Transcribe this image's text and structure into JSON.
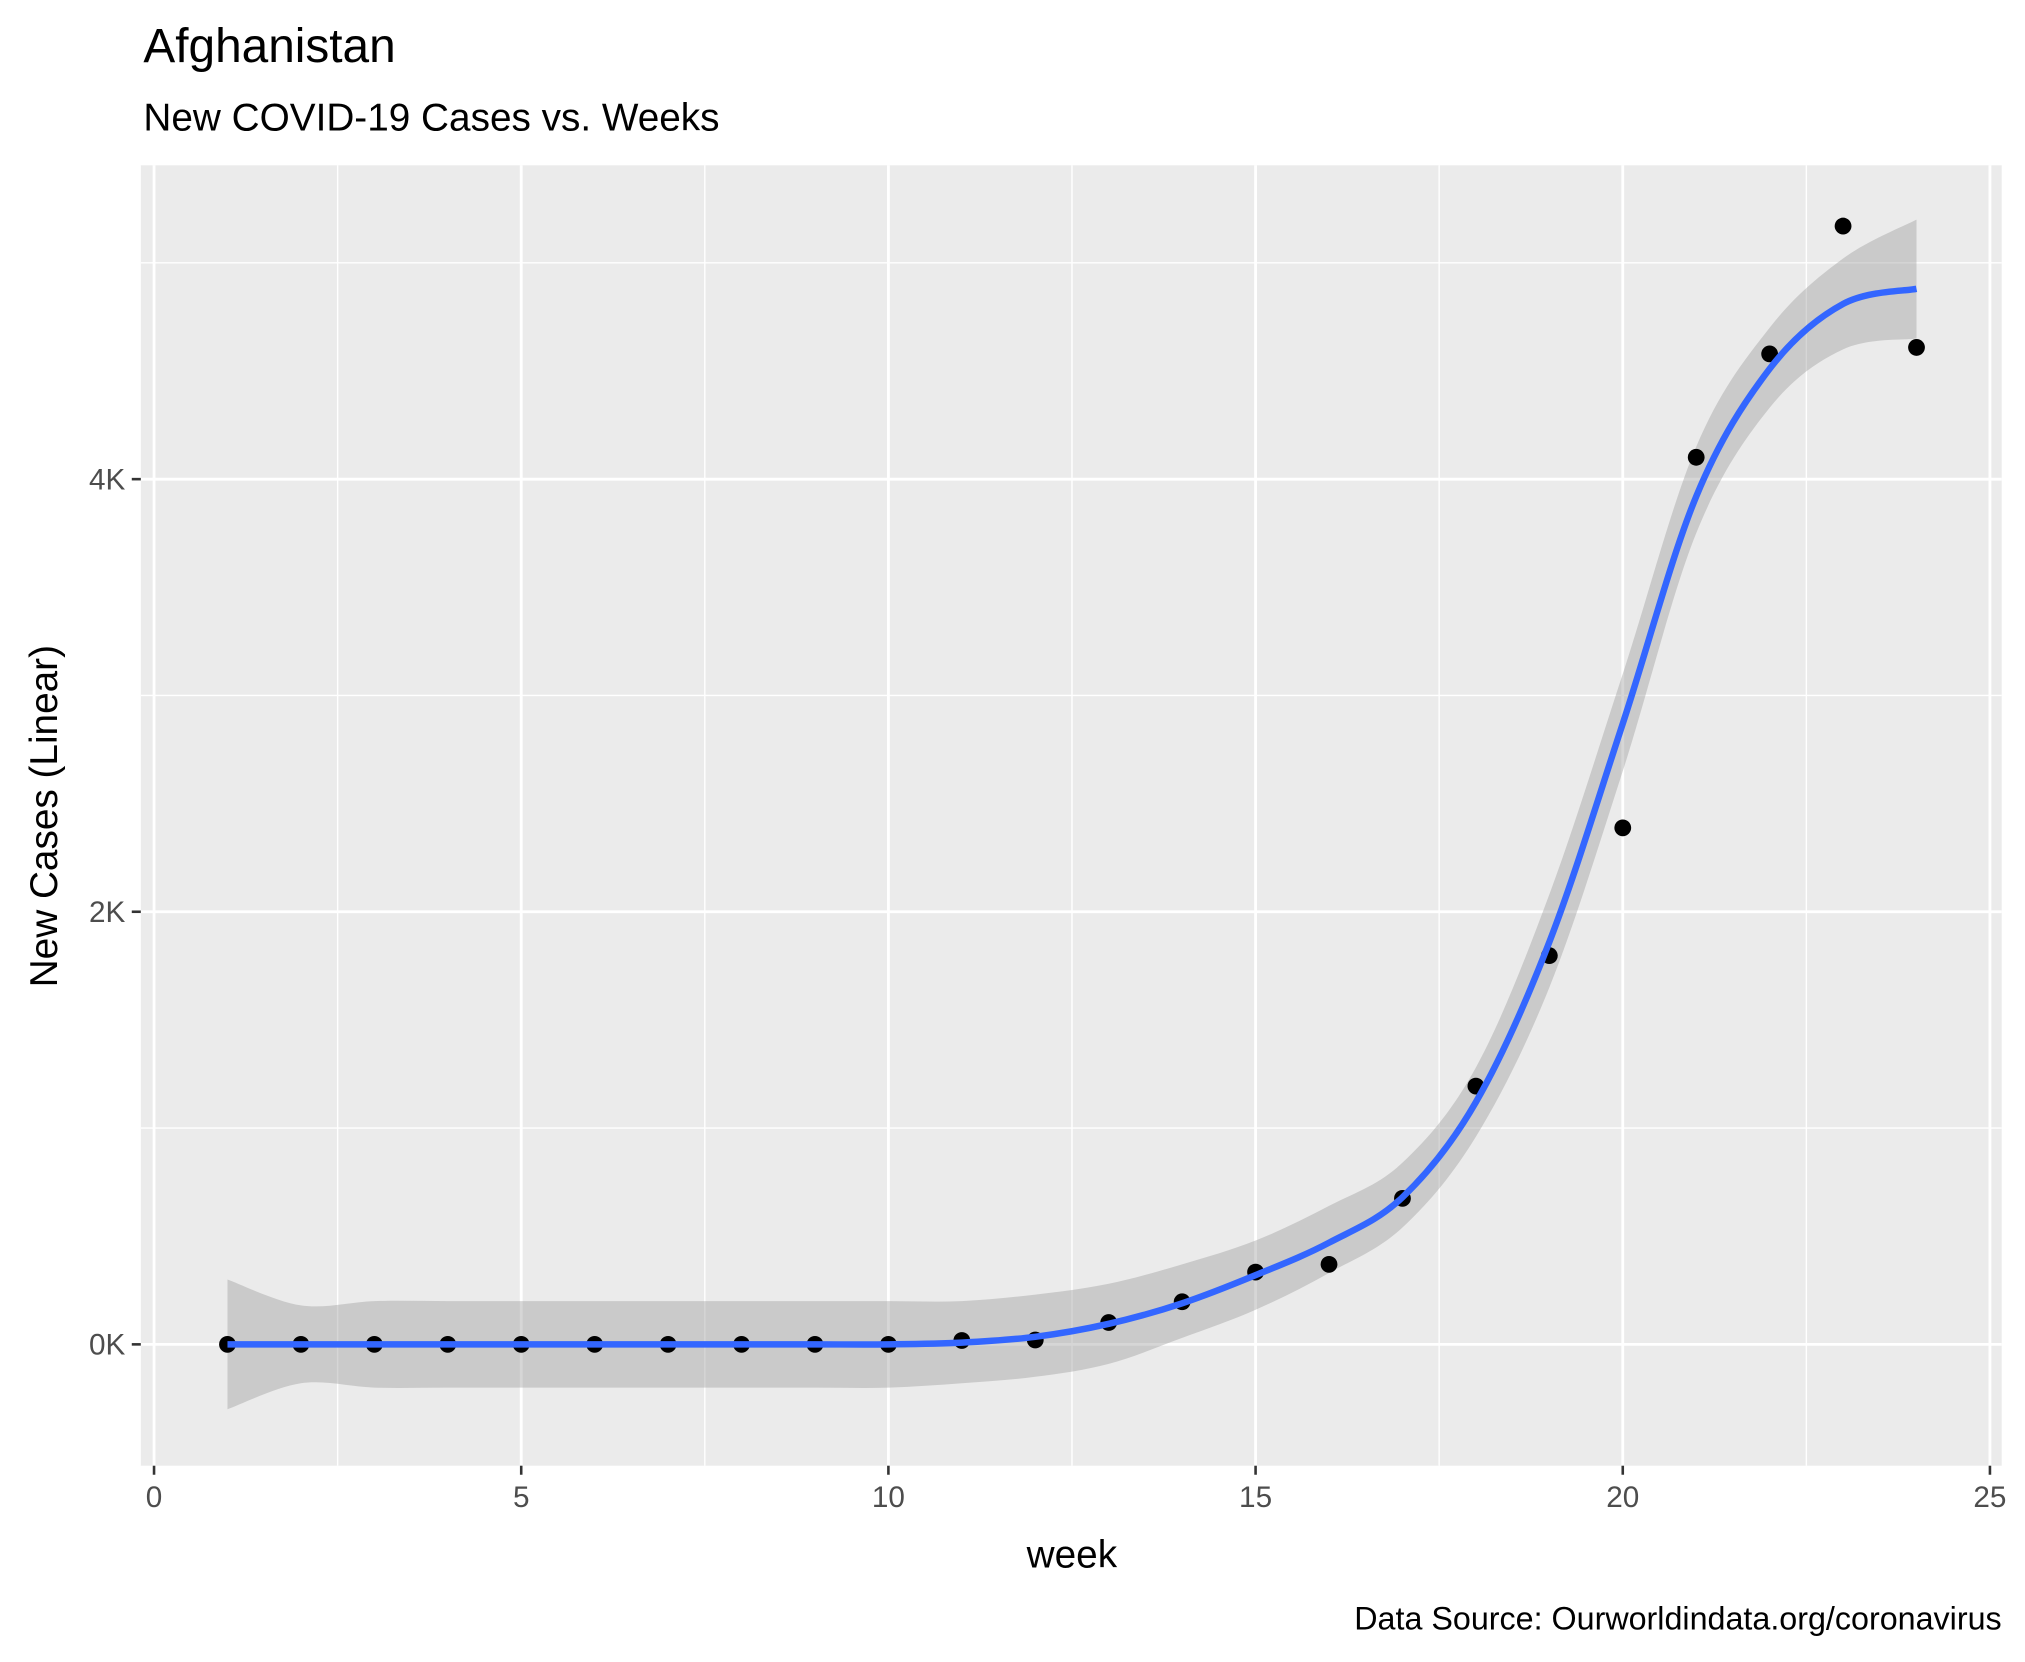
{
  "chart_data": {
    "type": "scatter",
    "title": "Afghanistan",
    "subtitle": "New COVID-19 Cases vs. Weeks",
    "x_label": "week",
    "y_label": "New Cases (Linear)",
    "caption": "Data Source: Ourworldindata.org/coronavirus",
    "x": [
      1,
      2,
      3,
      4,
      5,
      6,
      7,
      8,
      9,
      10,
      11,
      12,
      13,
      14,
      15,
      16,
      17,
      18,
      19,
      20,
      21,
      22,
      23,
      24
    ],
    "values": [
      0,
      0,
      0,
      0,
      0,
      0,
      0,
      0,
      0,
      0,
      18,
      20,
      101,
      197,
      334,
      370,
      675,
      1194,
      1797,
      2388,
      4101,
      4579,
      5170,
      4609
    ],
    "color": "#000000",
    "smooth": {
      "color": "#3366ff",
      "band_color": "#999999",
      "x": [
        1,
        2,
        3,
        4,
        5,
        6,
        7,
        8,
        9,
        10,
        11,
        12,
        13,
        14,
        15,
        16,
        17,
        18,
        19,
        20,
        21,
        22,
        23,
        24
      ],
      "values": [
        0,
        0,
        0,
        0,
        0,
        0,
        0,
        0,
        0,
        0,
        8,
        35,
        95,
        190,
        320,
        470,
        680,
        1120,
        1860,
        2870,
        3920,
        4510,
        4810,
        4880
      ],
      "lower": [
        -300,
        -180,
        -200,
        -200,
        -200,
        -200,
        -200,
        -200,
        -200,
        -200,
        -180,
        -150,
        -90,
        30,
        160,
        330,
        540,
        960,
        1650,
        2650,
        3750,
        4330,
        4600,
        4650
      ],
      "upper": [
        300,
        180,
        200,
        200,
        200,
        200,
        200,
        200,
        200,
        200,
        200,
        230,
        280,
        370,
        480,
        640,
        840,
        1280,
        2080,
        3100,
        4150,
        4700,
        5020,
        5200
      ]
    },
    "xlim": [
      -0.18,
      25.16
    ],
    "ylim": [
      -561,
      5451
    ],
    "xticks": [
      0,
      5,
      10,
      15,
      20,
      25
    ],
    "yticks": [
      {
        "value": 0,
        "label": "0K"
      },
      {
        "value": 2000,
        "label": "2K"
      },
      {
        "value": 4000,
        "label": "4K"
      }
    ],
    "xminor": [
      2.5,
      7.5,
      12.5,
      17.5,
      22.5
    ],
    "yminor": [
      1000,
      3000,
      5000
    ],
    "grid": true
  }
}
